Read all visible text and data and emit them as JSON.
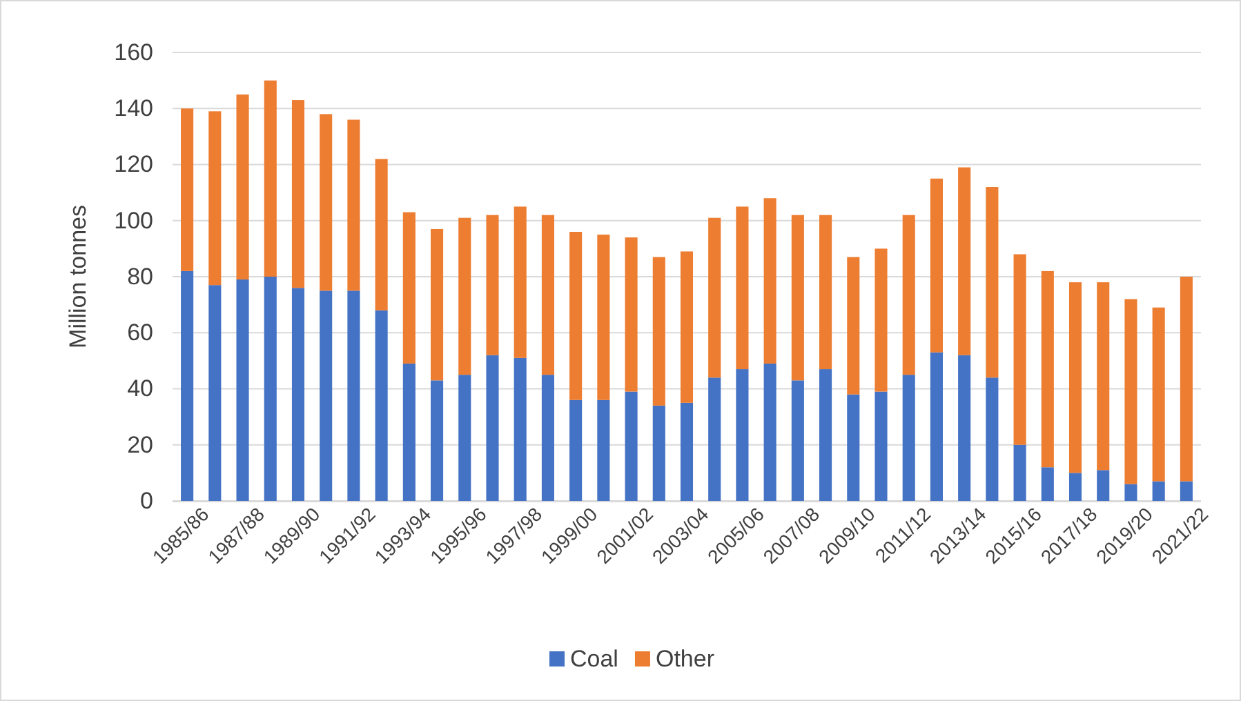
{
  "chart_data": {
    "type": "bar",
    "stacked": true,
    "ylabel": "Million tonnes",
    "categories": [
      "1985/86",
      null,
      "1987/88",
      null,
      "1989/90",
      null,
      "1991/92",
      null,
      "1993/94",
      null,
      "1995/96",
      null,
      "1997/98",
      null,
      "1999/00",
      null,
      "2001/02",
      null,
      "2003/04",
      null,
      "2005/06",
      null,
      "2007/08",
      null,
      "2009/10",
      null,
      "2011/12",
      null,
      "2013/14",
      null,
      "2015/16",
      null,
      "2017/18",
      null,
      "2019/20",
      null,
      "2021/22"
    ],
    "series": [
      {
        "name": "Coal",
        "color": "#4472c4",
        "values": [
          82,
          77,
          79,
          80,
          76,
          75,
          75,
          68,
          49,
          43,
          45,
          52,
          51,
          45,
          36,
          36,
          39,
          34,
          35,
          44,
          47,
          49,
          43,
          47,
          38,
          39,
          45,
          53,
          52,
          44,
          20,
          12,
          10,
          11,
          6,
          7,
          7
        ]
      },
      {
        "name": "Other",
        "color": "#ed7d31",
        "values": [
          58,
          62,
          66,
          70,
          67,
          63,
          61,
          54,
          54,
          54,
          56,
          50,
          54,
          57,
          60,
          59,
          55,
          53,
          54,
          57,
          58,
          59,
          59,
          55,
          49,
          51,
          57,
          62,
          67,
          68,
          68,
          70,
          68,
          67,
          66,
          62,
          73
        ]
      }
    ],
    "ylim": [
      0,
      160
    ],
    "yticks": [
      0,
      20,
      40,
      60,
      80,
      100,
      120,
      140,
      160
    ],
    "grid": "y",
    "legend": "bottom"
  }
}
